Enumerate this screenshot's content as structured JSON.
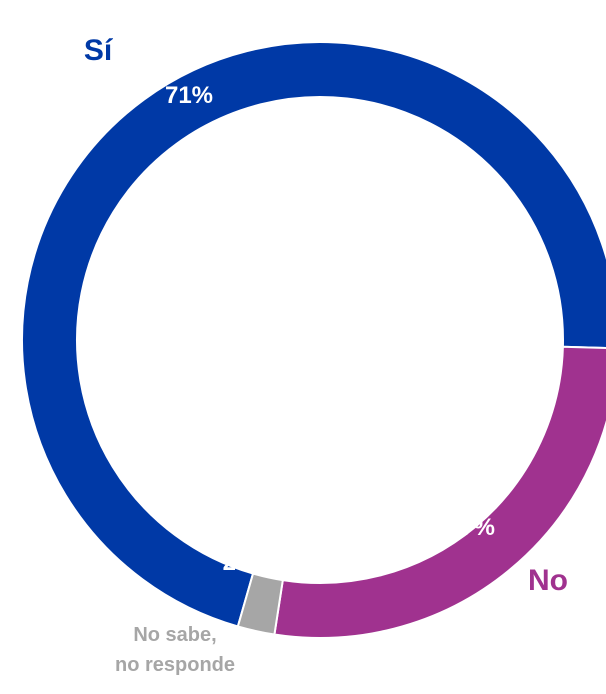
{
  "chart_data": {
    "type": "pie",
    "categories": [
      "Sí",
      "No",
      "No sabe, no responde"
    ],
    "values": [
      71,
      27,
      2
    ],
    "value_labels": [
      "71%",
      "27%",
      "2%"
    ],
    "title": "",
    "colors": {
      "si": "#0039a6",
      "no": "#a0328f",
      "ns_nr": "#a6a6a6"
    },
    "legend": "none",
    "labels": {
      "si": "Sí",
      "no": "No",
      "ns_nr_line1": "No sabe,",
      "ns_nr_line2": "no responde"
    }
  }
}
